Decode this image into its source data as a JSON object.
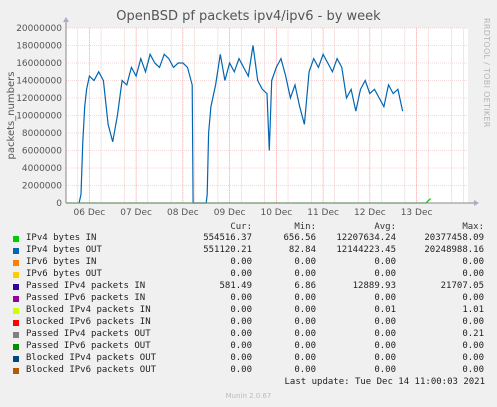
{
  "chart_data": {
    "type": "line",
    "title": "OpenBSD pf packets ipv4/ipv6 - by week",
    "ylabel": "packets_numbers",
    "ylim": [
      0,
      20000000
    ],
    "y_ticks": [
      "0",
      "2000000",
      "4000000",
      "6000000",
      "8000000",
      "10000000",
      "12000000",
      "14000000",
      "16000000",
      "18000000",
      "20000000"
    ],
    "x_ticks": [
      "06 Dec",
      "07 Dec",
      "08 Dec",
      "09 Dec",
      "10 Dec",
      "11 Dec",
      "12 Dec",
      "13 Dec"
    ],
    "grid": true,
    "x_range_days": [
      0,
      8.6
    ],
    "series": [
      {
        "name": "IPv4 bytes OUT",
        "color": "#0066b3",
        "x": [
          0.28,
          0.32,
          0.36,
          0.4,
          0.44,
          0.5,
          0.6,
          0.7,
          0.8,
          0.9,
          1.0,
          1.1,
          1.2,
          1.3,
          1.4,
          1.5,
          1.6,
          1.7,
          1.8,
          1.9,
          2.0,
          2.1,
          2.2,
          2.3,
          2.4,
          2.5,
          2.6,
          2.7,
          2.72,
          3.0,
          3.02,
          3.05,
          3.1,
          3.2,
          3.3,
          3.4,
          3.5,
          3.6,
          3.7,
          3.8,
          3.9,
          4.0,
          4.1,
          4.2,
          4.3,
          4.35,
          4.4,
          4.5,
          4.6,
          4.7,
          4.8,
          4.9,
          5.0,
          5.1,
          5.2,
          5.3,
          5.4,
          5.5,
          5.6,
          5.7,
          5.8,
          5.9,
          6.0,
          6.1,
          6.2,
          6.3,
          6.4,
          6.5,
          6.6,
          6.7,
          6.8,
          6.9,
          7.0,
          7.1,
          7.2
        ],
        "values": [
          0,
          1000000,
          7000000,
          11000000,
          13000000,
          14500000,
          14000000,
          15000000,
          14000000,
          9000000,
          7000000,
          10000000,
          14000000,
          13500000,
          15500000,
          14500000,
          16500000,
          15000000,
          17000000,
          16000000,
          15500000,
          17000000,
          16500000,
          15500000,
          16000000,
          16000000,
          15500000,
          13500000,
          0,
          0,
          1000000,
          8000000,
          11000000,
          13500000,
          17000000,
          14000000,
          16000000,
          15000000,
          16500000,
          15500000,
          14500000,
          18000000,
          14000000,
          13000000,
          12500000,
          6000000,
          14000000,
          15500000,
          16500000,
          14500000,
          12000000,
          13500000,
          11000000,
          9000000,
          15000000,
          16500000,
          15500000,
          17000000,
          16000000,
          15000000,
          16500000,
          15500000,
          12000000,
          13000000,
          10500000,
          13000000,
          14000000,
          12500000,
          13000000,
          12000000,
          11000000,
          13500000,
          12500000,
          13000000,
          10500000
        ]
      },
      {
        "name": "IPv4 bytes IN",
        "color": "#00cc00",
        "x": [
          0.0,
          0.3,
          3.0,
          7.7,
          7.8
        ],
        "values": [
          0,
          0,
          0,
          0,
          500000
        ]
      }
    ]
  },
  "legend": {
    "headers": {
      "cur": "Cur:",
      "min": "Min:",
      "avg": "Avg:",
      "max": "Max:"
    },
    "rows": [
      {
        "name": "IPv4 bytes IN",
        "color": "#00cc00",
        "cur": "554516.37",
        "min": "656.56",
        "avg": "12207634.24",
        "max": "20377458.09"
      },
      {
        "name": "IPv4 bytes OUT",
        "color": "#0066b3",
        "cur": "551120.21",
        "min": "82.84",
        "avg": "12144223.45",
        "max": "20248988.16"
      },
      {
        "name": "IPv6 bytes IN",
        "color": "#ff8000",
        "cur": "0.00",
        "min": "0.00",
        "avg": "0.00",
        "max": "0.00"
      },
      {
        "name": "IPv6 bytes OUT",
        "color": "#ffcc00",
        "cur": "0.00",
        "min": "0.00",
        "avg": "0.00",
        "max": "0.00"
      },
      {
        "name": "Passed IPv4 packets IN",
        "color": "#330099",
        "cur": "581.49",
        "min": "6.86",
        "avg": "12889.93",
        "max": "21707.05"
      },
      {
        "name": "Passed IPv6 packets IN",
        "color": "#990099",
        "cur": "0.00",
        "min": "0.00",
        "avg": "0.00",
        "max": "0.00"
      },
      {
        "name": "Blocked IPv4 packets IN",
        "color": "#ccff00",
        "cur": "0.00",
        "min": "0.00",
        "avg": "0.01",
        "max": "1.01"
      },
      {
        "name": "Blocked IPv6 packets IN",
        "color": "#ff0000",
        "cur": "0.00",
        "min": "0.00",
        "avg": "0.00",
        "max": "0.00"
      },
      {
        "name": "Passed IPv4 packets OUT",
        "color": "#808080",
        "cur": "0.00",
        "min": "0.00",
        "avg": "0.00",
        "max": "0.21"
      },
      {
        "name": "Passed IPv6 packets OUT",
        "color": "#008f00",
        "cur": "0.00",
        "min": "0.00",
        "avg": "0.00",
        "max": "0.00"
      },
      {
        "name": "Blocked IPv4 packets OUT",
        "color": "#00487d",
        "cur": "0.00",
        "min": "0.00",
        "avg": "0.00",
        "max": "0.00"
      },
      {
        "name": "Blocked IPv6 packets OUT",
        "color": "#b35a00",
        "cur": "0.00",
        "min": "0.00",
        "avg": "0.00",
        "max": "0.00"
      }
    ]
  },
  "side_label": "RRDTOOL / TOBI OETIKER",
  "last_update": "Last update: Tue Dec 14 11:00:03 2021",
  "footer": "Munin 2.0.67"
}
